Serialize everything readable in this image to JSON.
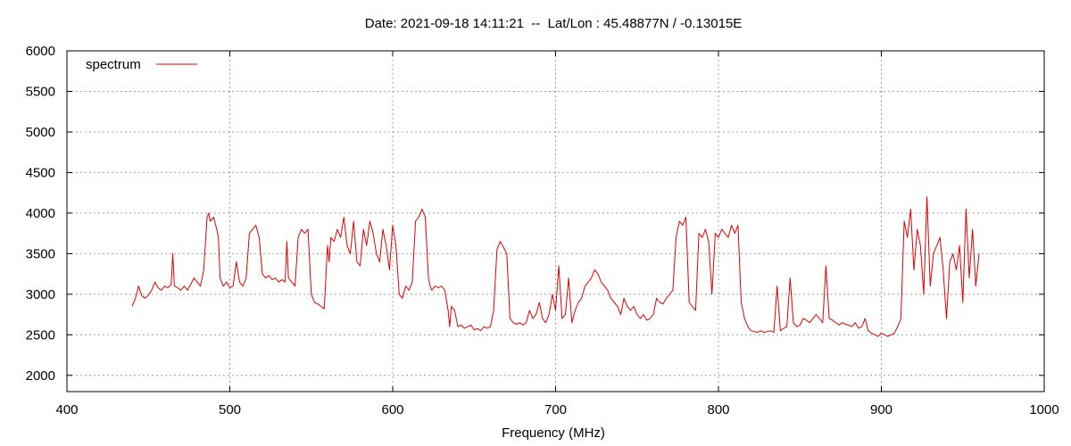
{
  "colors": {
    "series": "#e00000",
    "grid": "#a0a0a0",
    "axis": "#000000"
  },
  "chart_data": {
    "type": "line",
    "title": "Date: 2021-09-18 14:11:21  --  Lat/Lon : 45.48877N / -0.13015E",
    "xlabel": "Frequency (MHz)",
    "ylabel": "",
    "xlim": [
      400,
      1000
    ],
    "ylim": [
      1800,
      6000
    ],
    "xticks": [
      400,
      500,
      600,
      700,
      800,
      900,
      1000
    ],
    "yticks": [
      2000,
      2500,
      3000,
      3500,
      4000,
      4500,
      5000,
      5500,
      6000
    ],
    "grid": true,
    "legend_position": "top-left",
    "series": [
      {
        "name": "spectrum",
        "color": "#e00000",
        "x": [
          440,
          442,
          444,
          446,
          448,
          450,
          452,
          454,
          456,
          458,
          460,
          462,
          464,
          465,
          466,
          468,
          470,
          472,
          474,
          476,
          478,
          480,
          482,
          484,
          486,
          487,
          488,
          490,
          492,
          493,
          494,
          496,
          498,
          500,
          502,
          504,
          506,
          508,
          510,
          512,
          514,
          516,
          518,
          520,
          522,
          524,
          526,
          528,
          530,
          532,
          534,
          535,
          536,
          538,
          540,
          542,
          544,
          546,
          548,
          550,
          551,
          552,
          554,
          556,
          558,
          560,
          561,
          562,
          564,
          566,
          568,
          570,
          572,
          574,
          576,
          578,
          580,
          582,
          584,
          586,
          588,
          590,
          592,
          594,
          596,
          598,
          600,
          602,
          604,
          606,
          608,
          610,
          612,
          614,
          616,
          618,
          620,
          622,
          623,
          624,
          626,
          628,
          630,
          632,
          634,
          635,
          636,
          638,
          640,
          642,
          644,
          646,
          648,
          650,
          652,
          654,
          656,
          658,
          660,
          662,
          664,
          666,
          668,
          670,
          672,
          674,
          676,
          678,
          680,
          682,
          684,
          686,
          688,
          690,
          692,
          694,
          696,
          698,
          700,
          702,
          704,
          706,
          708,
          710,
          712,
          714,
          716,
          718,
          720,
          722,
          724,
          726,
          728,
          730,
          732,
          734,
          736,
          738,
          740,
          742,
          744,
          746,
          748,
          750,
          752,
          754,
          756,
          758,
          760,
          762,
          764,
          766,
          768,
          770,
          772,
          774,
          776,
          778,
          780,
          782,
          784,
          786,
          788,
          790,
          792,
          794,
          796,
          798,
          800,
          802,
          804,
          806,
          808,
          810,
          812,
          814,
          816,
          818,
          820,
          822,
          824,
          826,
          828,
          830,
          832,
          834,
          836,
          838,
          840,
          842,
          844,
          846,
          848,
          850,
          852,
          854,
          856,
          858,
          860,
          862,
          864,
          866,
          868,
          870,
          872,
          874,
          876,
          878,
          880,
          882,
          884,
          886,
          888,
          890,
          892,
          894,
          896,
          898,
          900,
          902,
          904,
          906,
          908,
          910,
          912,
          914,
          916,
          918,
          920,
          922,
          924,
          926,
          928,
          930,
          932,
          934,
          936,
          938,
          940,
          942,
          944,
          946,
          948,
          950,
          952,
          954,
          956,
          958,
          960
        ],
        "values": [
          2850,
          2950,
          3100,
          2980,
          2950,
          2990,
          3050,
          3150,
          3080,
          3050,
          3100,
          3080,
          3120,
          3500,
          3100,
          3080,
          3050,
          3100,
          3050,
          3120,
          3200,
          3150,
          3100,
          3300,
          3950,
          4000,
          3900,
          3950,
          3800,
          3700,
          3200,
          3100,
          3150,
          3080,
          3100,
          3400,
          3150,
          3100,
          3200,
          3750,
          3800,
          3850,
          3700,
          3250,
          3200,
          3230,
          3180,
          3200,
          3150,
          3180,
          3150,
          3650,
          3200,
          3150,
          3100,
          3700,
          3800,
          3750,
          3800,
          3000,
          2950,
          2900,
          2880,
          2850,
          2820,
          3600,
          3400,
          3700,
          3650,
          3800,
          3700,
          3950,
          3600,
          3500,
          3900,
          3400,
          3350,
          3800,
          3600,
          3900,
          3750,
          3500,
          3400,
          3800,
          3600,
          3300,
          3850,
          3600,
          3000,
          2950,
          3100,
          3050,
          3150,
          3900,
          3950,
          4050,
          3950,
          3200,
          3100,
          3050,
          3100,
          3080,
          3100,
          3050,
          2800,
          2600,
          2850,
          2800,
          2600,
          2620,
          2580,
          2600,
          2620,
          2560,
          2580,
          2550,
          2600,
          2580,
          2600,
          2800,
          3550,
          3650,
          3580,
          3500,
          2700,
          2650,
          2630,
          2650,
          2620,
          2650,
          2800,
          2700,
          2750,
          2900,
          2700,
          2650,
          2750,
          3000,
          2800,
          3350,
          2700,
          2750,
          3200,
          2650,
          2800,
          2900,
          2950,
          3100,
          3150,
          3200,
          3300,
          3250,
          3150,
          3100,
          3050,
          2950,
          2900,
          2850,
          2750,
          2950,
          2850,
          2800,
          2850,
          2750,
          2700,
          2750,
          2680,
          2700,
          2750,
          2950,
          2900,
          2880,
          2950,
          3000,
          3050,
          3700,
          3900,
          3850,
          3950,
          2900,
          2850,
          2800,
          3750,
          3700,
          3800,
          3650,
          3000,
          3750,
          3700,
          3800,
          3750,
          3700,
          3850,
          3750,
          3850,
          2900,
          2700,
          2600,
          2550,
          2540,
          2530,
          2550,
          2530,
          2540,
          2550,
          2530,
          3100,
          2550,
          2580,
          2600,
          3200,
          2650,
          2600,
          2620,
          2700,
          2680,
          2650,
          2700,
          2750,
          2700,
          2650,
          3350,
          2700,
          2680,
          2650,
          2620,
          2650,
          2630,
          2620,
          2600,
          2650,
          2580,
          2600,
          2700,
          2550,
          2520,
          2500,
          2480,
          2520,
          2500,
          2480,
          2500,
          2520,
          2600,
          2700,
          3900,
          3700,
          4050,
          3300,
          3800,
          3600,
          3000,
          4200,
          3100,
          3500,
          3600,
          3700,
          3300,
          2700,
          3400,
          3500,
          3300,
          3600,
          2900,
          4050,
          3200,
          3800,
          3100,
          3500
        ]
      }
    ]
  }
}
